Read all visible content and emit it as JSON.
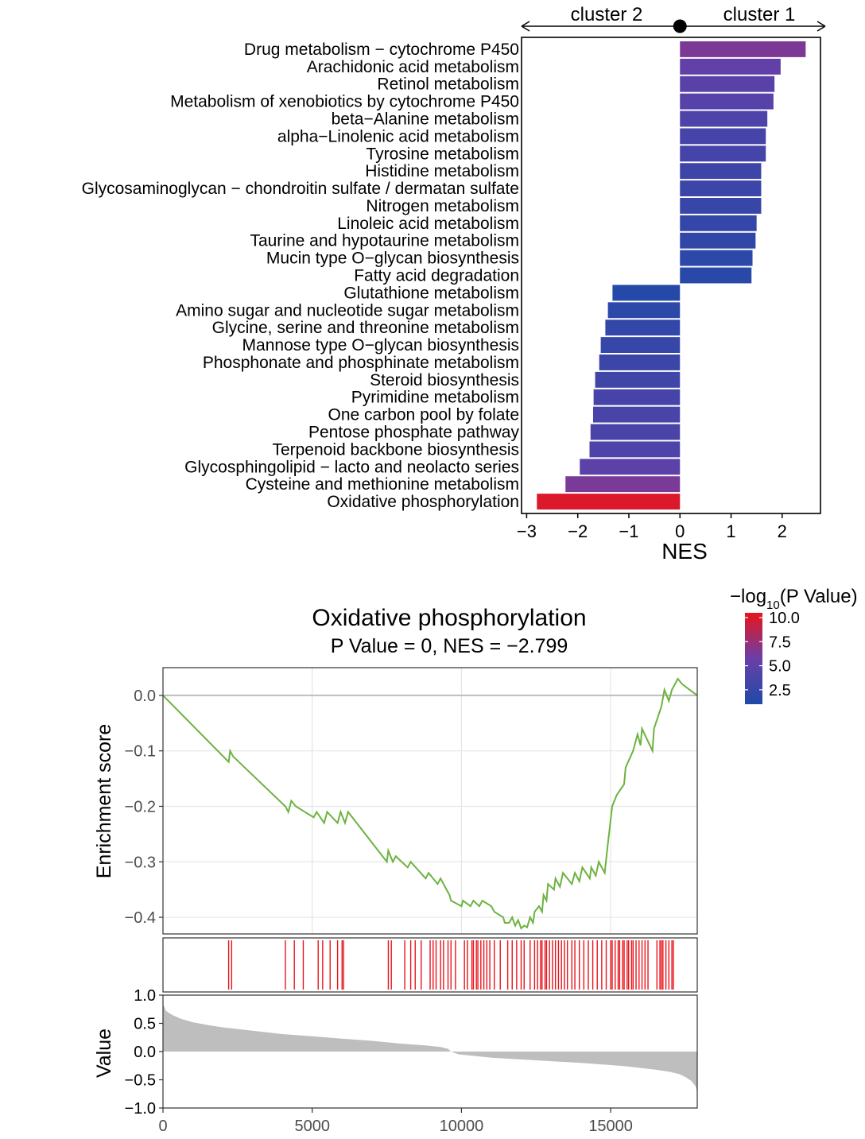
{
  "colors": {
    "nes_high": "#e8141c",
    "nes_mid": "#6a3fa8",
    "nes_low": "#1f4aa8",
    "es_line": "#6cb33f",
    "hit": "#e8141c",
    "rank_fill": "#bebebe"
  },
  "chart_data": [
    {
      "type": "bar",
      "orientation": "horizontal",
      "direction_labels": {
        "left": "cluster 2",
        "right": "cluster 1"
      },
      "xlabel": "NES",
      "xlim": [
        -3.1,
        2.75
      ],
      "xticks": [
        "−3",
        "−2",
        "−1",
        "0",
        "1",
        "2"
      ],
      "xtick_values": [
        -3,
        -2,
        -1,
        0,
        1,
        2
      ],
      "categories": [
        "Drug metabolism − cytochrome P450",
        "Arachidonic acid metabolism",
        "Retinol metabolism",
        "Metabolism of xenobiotics by cytochrome P450",
        "beta−Alanine metabolism",
        "alpha−Linolenic acid metabolism",
        "Tyrosine metabolism",
        "Histidine metabolism",
        "Glycosaminoglycan − chondroitin sulfate / dermatan sulfate",
        "Nitrogen metabolism",
        "Linoleic acid metabolism",
        "Taurine and hypotaurine metabolism",
        "Mucin type O−glycan biosynthesis",
        "Fatty acid degradation",
        "Glutathione metabolism",
        "Amino sugar and nucleotide sugar metabolism",
        "Glycine, serine and threonine metabolism",
        "Mannose type O−glycan biosynthesis",
        "Phosphonate and phosphinate metabolism",
        "Steroid biosynthesis",
        "Pyrimidine metabolism",
        "One carbon pool by folate",
        "Pentose phosphate pathway",
        "Terpenoid backbone biosynthesis",
        "Glycosphingolipid − lacto and neolacto series",
        "Cysteine and methionine metabolism",
        "Oxidative phosphorylation"
      ],
      "values": [
        2.46,
        1.97,
        1.85,
        1.83,
        1.71,
        1.68,
        1.68,
        1.59,
        1.59,
        1.59,
        1.5,
        1.48,
        1.42,
        1.4,
        -1.32,
        -1.41,
        -1.46,
        -1.55,
        -1.58,
        -1.66,
        -1.69,
        -1.7,
        -1.75,
        -1.77,
        -1.96,
        -2.24,
        -2.8
      ],
      "neg_log10_p": [
        6.4,
        5.2,
        4.7,
        4.5,
        3.9,
        3.5,
        3.4,
        3.0,
        2.8,
        2.6,
        2.3,
        2.1,
        1.8,
        1.6,
        1.3,
        1.8,
        2.2,
        2.5,
        2.8,
        3.1,
        3.5,
        3.6,
        3.8,
        4.0,
        4.8,
        6.3,
        10.0
      ]
    },
    {
      "type": "legend",
      "title_prefix": "−log",
      "title_sub": "10",
      "title_suffix": "(P Value)",
      "labels": [
        "10.0",
        "7.5",
        "5.0",
        "2.5"
      ],
      "values": [
        10.0,
        7.5,
        5.0,
        2.5
      ],
      "range": [
        1.0,
        10.5
      ]
    },
    {
      "type": "line",
      "title": "Oxidative phosphorylation",
      "subtitle": "P Value = 0, NES = −2.799",
      "ylabel": "Enrichment score",
      "ylim": [
        -0.43,
        0.05
      ],
      "yticks": [
        "0.0",
        "−0.1",
        "−0.2",
        "−0.3",
        "−0.4"
      ],
      "ytick_values": [
        0,
        -0.1,
        -0.2,
        -0.3,
        -0.4
      ],
      "xlim": [
        0,
        17900
      ],
      "x": [
        0,
        2200,
        2250,
        2350,
        4100,
        4200,
        4300,
        4450,
        5050,
        5150,
        5400,
        5500,
        5850,
        5950,
        6100,
        6200,
        7500,
        7550,
        7700,
        7800,
        8200,
        8300,
        8800,
        8900,
        9200,
        9300,
        9600,
        9650,
        10000,
        10050,
        10300,
        10400,
        10600,
        10700,
        11000,
        11100,
        11400,
        11450,
        11600,
        11700,
        11800,
        11900,
        12000,
        12100,
        12200,
        12300,
        12400,
        12450,
        12600,
        12700,
        12750,
        12850,
        12900,
        13100,
        13150,
        13300,
        13400,
        13700,
        13800,
        13950,
        14050,
        14300,
        14350,
        14500,
        14600,
        14800,
        14900,
        15050,
        15200,
        15450,
        15500,
        15750,
        15900,
        16000,
        16050,
        16400,
        16450,
        16700,
        16800,
        16950,
        17050,
        17250,
        17400,
        17900
      ],
      "y": [
        0,
        -0.12,
        -0.1,
        -0.11,
        -0.2,
        -0.21,
        -0.19,
        -0.2,
        -0.22,
        -0.21,
        -0.23,
        -0.21,
        -0.23,
        -0.21,
        -0.23,
        -0.21,
        -0.3,
        -0.28,
        -0.3,
        -0.29,
        -0.31,
        -0.3,
        -0.33,
        -0.32,
        -0.34,
        -0.33,
        -0.36,
        -0.37,
        -0.38,
        -0.37,
        -0.38,
        -0.37,
        -0.38,
        -0.37,
        -0.38,
        -0.39,
        -0.4,
        -0.41,
        -0.41,
        -0.4,
        -0.415,
        -0.405,
        -0.42,
        -0.415,
        -0.418,
        -0.4,
        -0.41,
        -0.39,
        -0.38,
        -0.39,
        -0.36,
        -0.37,
        -0.34,
        -0.35,
        -0.33,
        -0.345,
        -0.32,
        -0.34,
        -0.32,
        -0.335,
        -0.31,
        -0.33,
        -0.31,
        -0.325,
        -0.3,
        -0.32,
        -0.27,
        -0.2,
        -0.18,
        -0.16,
        -0.13,
        -0.1,
        -0.07,
        -0.09,
        -0.06,
        -0.1,
        -0.06,
        -0.02,
        0.01,
        -0.01,
        0.01,
        0.03,
        0.02,
        0.0
      ]
    },
    {
      "type": "scatter",
      "marker": "hit-line",
      "xlim": [
        0,
        17900
      ],
      "x": [
        2200,
        2300,
        4100,
        4400,
        4700,
        5200,
        5350,
        5600,
        5850,
        6000,
        6050,
        7550,
        7650,
        8100,
        8300,
        8450,
        8650,
        8950,
        9050,
        9150,
        9300,
        9400,
        9550,
        9650,
        9800,
        10100,
        10200,
        10350,
        10400,
        10500,
        10550,
        10650,
        10750,
        10850,
        10950,
        11100,
        11300,
        11550,
        11700,
        11850,
        12000,
        12100,
        12300,
        12450,
        12550,
        12650,
        12700,
        12800,
        12850,
        12950,
        13050,
        13150,
        13250,
        13350,
        13450,
        13550,
        13700,
        13800,
        13950,
        14100,
        14250,
        14400,
        14550,
        14700,
        14850,
        15000,
        15050,
        15150,
        15250,
        15300,
        15400,
        15450,
        15550,
        15600,
        15700,
        15750,
        15850,
        15950,
        16050,
        16150,
        16250,
        16550,
        16650,
        16700,
        16750,
        16850,
        16950,
        17050,
        17100
      ]
    },
    {
      "type": "area",
      "ylabel": "Value",
      "ylim": [
        -1.0,
        1.0
      ],
      "yticks": [
        "1.0",
        "0.5",
        "0.0",
        "−0.5",
        "−1.0"
      ],
      "ytick_values": [
        1.0,
        0.5,
        0.0,
        -0.5,
        -1.0
      ],
      "xlim": [
        0,
        17900
      ],
      "xticks": [
        "0",
        "5000",
        "10000",
        "15000"
      ],
      "xtick_values": [
        0,
        5000,
        10000,
        15000
      ],
      "x": [
        0,
        20,
        100,
        300,
        600,
        1000,
        1500,
        2000,
        3000,
        4000,
        5000,
        6000,
        7000,
        8000,
        8800,
        9300,
        9550,
        9650,
        9900,
        10500,
        11000,
        12000,
        13000,
        14000,
        15000,
        15500,
        16000,
        16500,
        17000,
        17300,
        17500,
        17700,
        17850,
        17900
      ],
      "y": [
        0.88,
        0.82,
        0.72,
        0.65,
        0.58,
        0.52,
        0.47,
        0.43,
        0.37,
        0.31,
        0.27,
        0.23,
        0.19,
        0.14,
        0.11,
        0.08,
        0.05,
        0.0,
        -0.05,
        -0.08,
        -0.11,
        -0.14,
        -0.17,
        -0.2,
        -0.24,
        -0.26,
        -0.29,
        -0.32,
        -0.36,
        -0.4,
        -0.45,
        -0.52,
        -0.62,
        -0.72
      ]
    }
  ]
}
